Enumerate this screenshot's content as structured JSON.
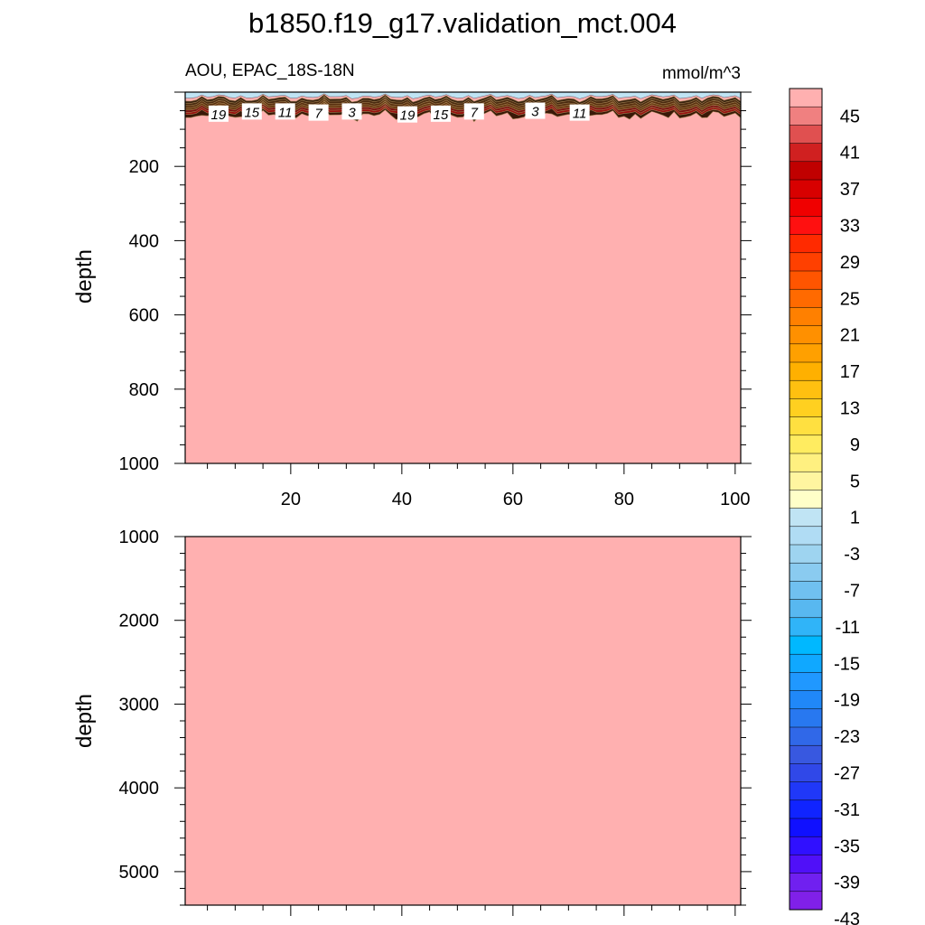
{
  "title": "b1850.f19_g17.validation_mct.004",
  "chart_data": [
    {
      "type": "heatmap",
      "title": "",
      "left_string": "AOU, EPAC_18S-18N",
      "right_string": "mmol/m^3",
      "ylabel": "depth",
      "xlabel": "",
      "xlim": [
        1,
        101
      ],
      "ylim": [
        1000,
        0
      ],
      "x_ticks": [
        "20",
        "40",
        "60",
        "80",
        "100"
      ],
      "y_ticks": [
        "200",
        "400",
        "600",
        "800",
        "1000"
      ],
      "fill_value": 47,
      "contour_labels": [
        {
          "text": "19",
          "x": 7,
          "y": 58
        },
        {
          "text": "15",
          "x": 13,
          "y": 52
        },
        {
          "text": "11",
          "x": 19,
          "y": 52
        },
        {
          "text": "7",
          "x": 25,
          "y": 55
        },
        {
          "text": "3",
          "x": 31,
          "y": 52
        },
        {
          "text": "19",
          "x": 41,
          "y": 60
        },
        {
          "text": "15",
          "x": 47,
          "y": 58
        },
        {
          "text": "7",
          "x": 53,
          "y": 52
        },
        {
          "text": "3",
          "x": 64,
          "y": 50
        },
        {
          "text": "11",
          "x": 72,
          "y": 55
        }
      ]
    },
    {
      "type": "heatmap",
      "title": "",
      "ylabel": "depth",
      "xlabel": "",
      "xlim": [
        1,
        101
      ],
      "ylim": [
        5400,
        1000
      ],
      "y_ticks": [
        "1000",
        "2000",
        "3000",
        "4000",
        "5000"
      ],
      "fill_value": 47
    }
  ],
  "colorbar": {
    "labels": [
      "45",
      "41",
      "37",
      "33",
      "29",
      "25",
      "21",
      "17",
      "13",
      "9",
      "5",
      "1",
      "-3",
      "-7",
      "-11",
      "-15",
      "-19",
      "-23",
      "-27",
      "-31",
      "-35",
      "-39",
      "-43"
    ],
    "colors": [
      "#ffb0b0",
      "#f08080",
      "#e05050",
      "#d02020",
      "#c00000",
      "#d80000",
      "#f00000",
      "#ff1010",
      "#ff2a00",
      "#ff4000",
      "#ff5500",
      "#ff6a00",
      "#ff8000",
      "#ff9000",
      "#ffa000",
      "#ffb000",
      "#ffc010",
      "#ffd020",
      "#ffe040",
      "#ffec60",
      "#fff080",
      "#fff5a0",
      "#ffffc8",
      "#c0e4f4",
      "#b0dcf4",
      "#9ed4f0",
      "#8acbf0",
      "#70c0f0",
      "#58b8f0",
      "#30b4f8",
      "#00b8ff",
      "#10a8ff",
      "#2098ff",
      "#2088f8",
      "#2878f0",
      "#3068e8",
      "#3858e0",
      "#3048e8",
      "#2038f8",
      "#1024ff",
      "#1010ff",
      "#3010ff",
      "#5010f8",
      "#7020f0",
      "#8020e8"
    ]
  }
}
